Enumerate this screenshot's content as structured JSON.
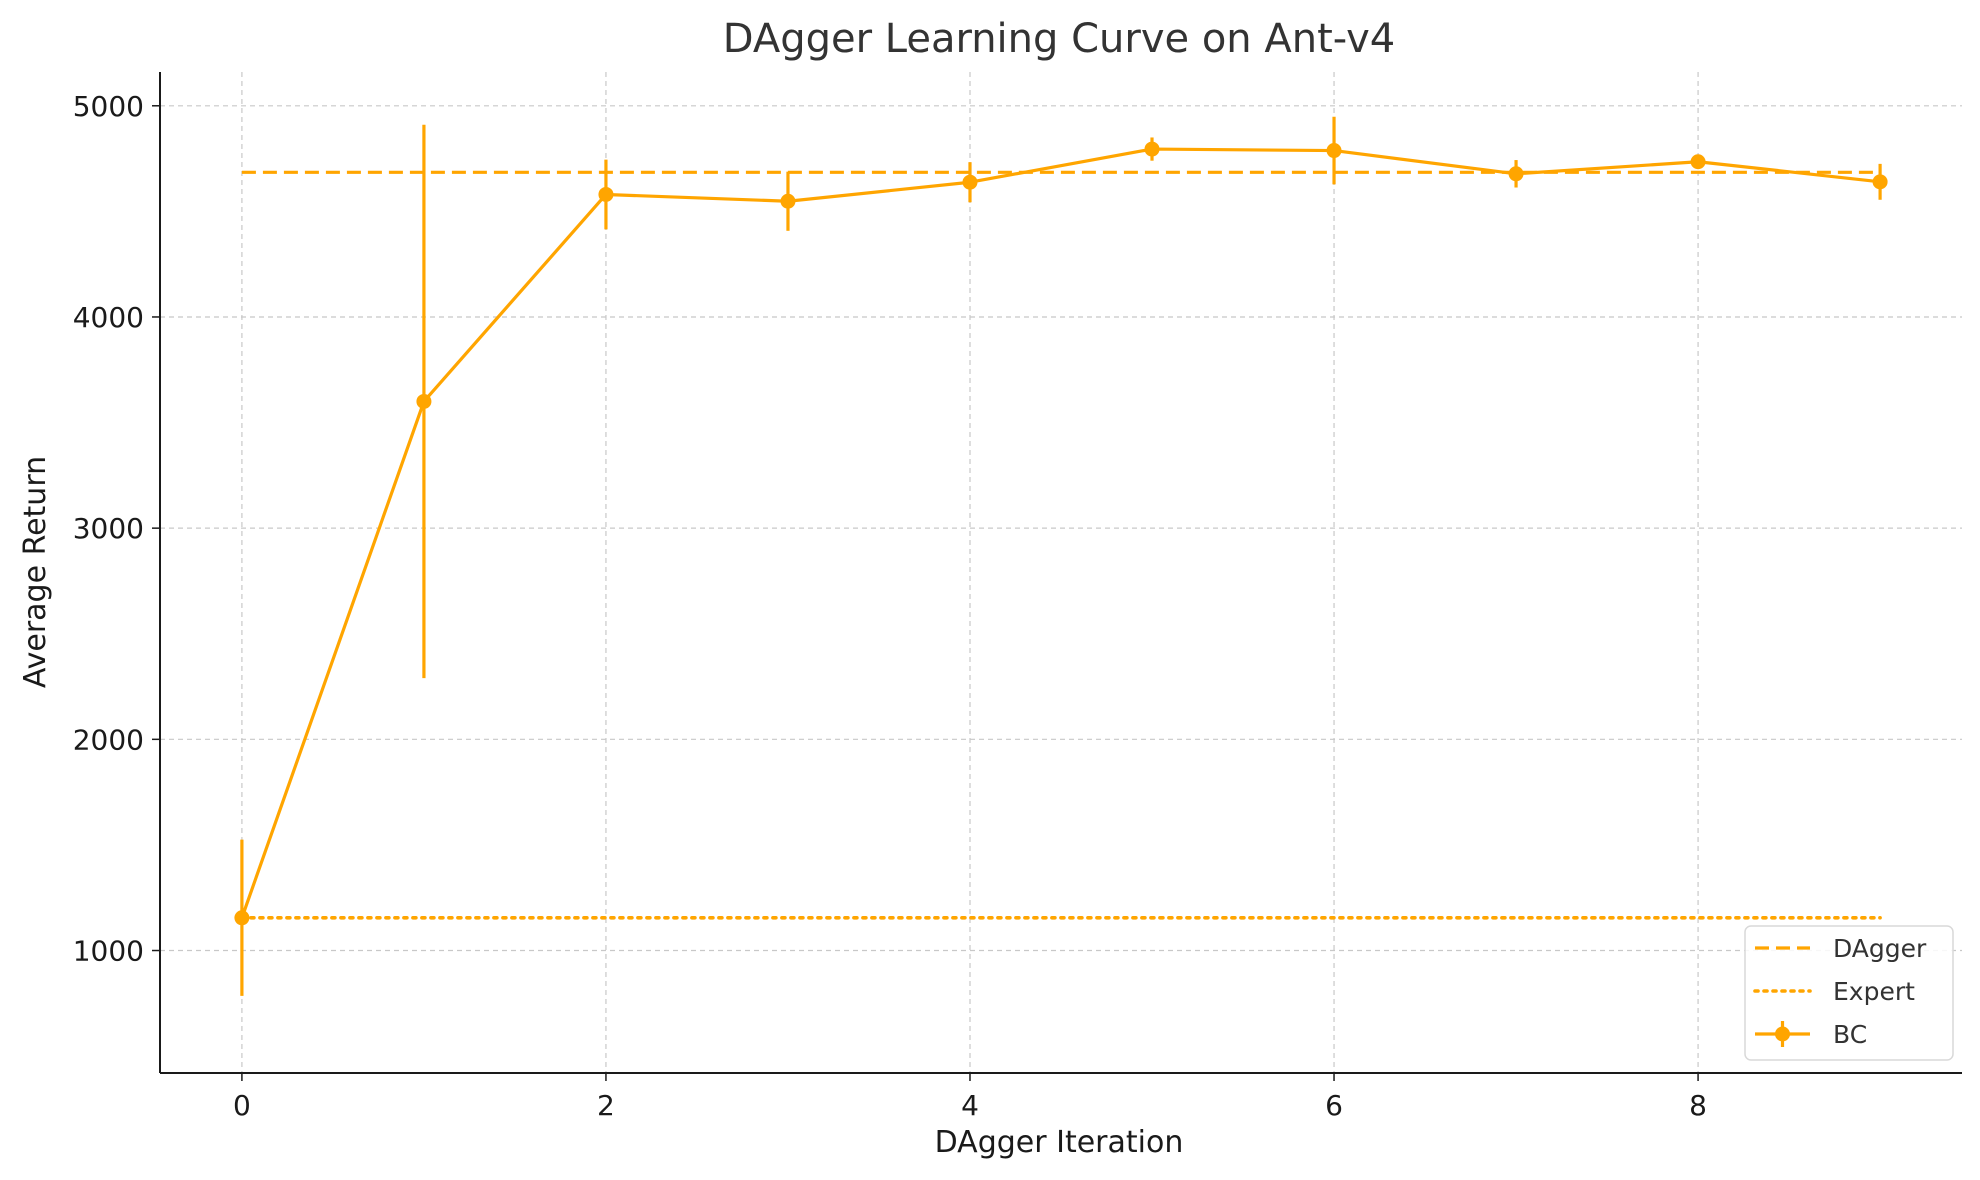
{
  "chart_data": {
    "type": "line",
    "title": "DAgger Learning Curve on Ant-v4",
    "xlabel": "DAgger Iteration",
    "ylabel": "Average Return",
    "xlim": [
      -0.45,
      9.45
    ],
    "ylim": [
      420,
      5160
    ],
    "xticks": [
      0,
      2,
      4,
      6,
      8
    ],
    "yticks": [
      1000,
      2000,
      3000,
      4000,
      5000
    ],
    "grid": true,
    "legend_position": "lower-right",
    "color": "#FFA500",
    "series": [
      {
        "name": "DAgger",
        "style": "dashed",
        "x": [
          0,
          9
        ],
        "y": [
          4685,
          4685
        ]
      },
      {
        "name": "Expert",
        "style": "dotted",
        "x": [
          0,
          9
        ],
        "y": [
          1155,
          1155
        ]
      },
      {
        "name": "BC",
        "style": "solid-markers-errorbars",
        "x": [
          0,
          1,
          2,
          3,
          4,
          5,
          6,
          7,
          8,
          9
        ],
        "y": [
          1155,
          3600,
          4580,
          4548,
          4638,
          4795,
          4788,
          4678,
          4735,
          4640
        ],
        "yerr": [
          370,
          1310,
          165,
          140,
          95,
          55,
          160,
          65,
          30,
          85
        ]
      }
    ],
    "legend_entries": [
      "DAgger",
      "Expert",
      "BC"
    ]
  }
}
